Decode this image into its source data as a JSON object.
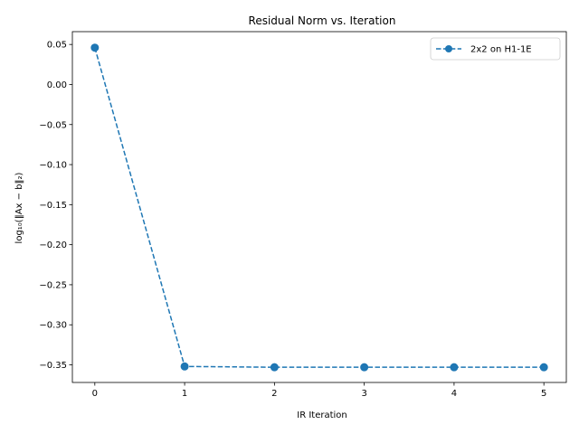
{
  "chart_data": {
    "type": "line",
    "title": "Residual Norm vs. Iteration",
    "xlabel": "IR Iteration",
    "ylabel": "log₁₀(‖Ax − b‖₂)",
    "x": [
      0,
      1,
      2,
      3,
      4,
      5
    ],
    "series": [
      {
        "name": "2x2 on H1-1E",
        "values": [
          0.046,
          -0.352,
          -0.353,
          -0.353,
          -0.353,
          -0.353
        ],
        "color": "#1f77b4",
        "line_style": "dashed",
        "marker": "circle"
      }
    ],
    "xlim": [
      -0.25,
      5.25
    ],
    "ylim": [
      -0.372,
      0.066
    ],
    "xticks": [
      0,
      1,
      2,
      3,
      4,
      5
    ],
    "xtick_labels": [
      "0",
      "1",
      "2",
      "3",
      "4",
      "5"
    ],
    "yticks": [
      0.05,
      0.0,
      -0.05,
      -0.1,
      -0.15,
      -0.2,
      -0.25,
      -0.3,
      -0.35
    ],
    "ytick_labels": [
      "0.05",
      "0.00",
      "−0.05",
      "−0.10",
      "−0.15",
      "−0.20",
      "−0.25",
      "−0.30",
      "−0.35"
    ],
    "grid": false,
    "legend_position": "top-right"
  }
}
